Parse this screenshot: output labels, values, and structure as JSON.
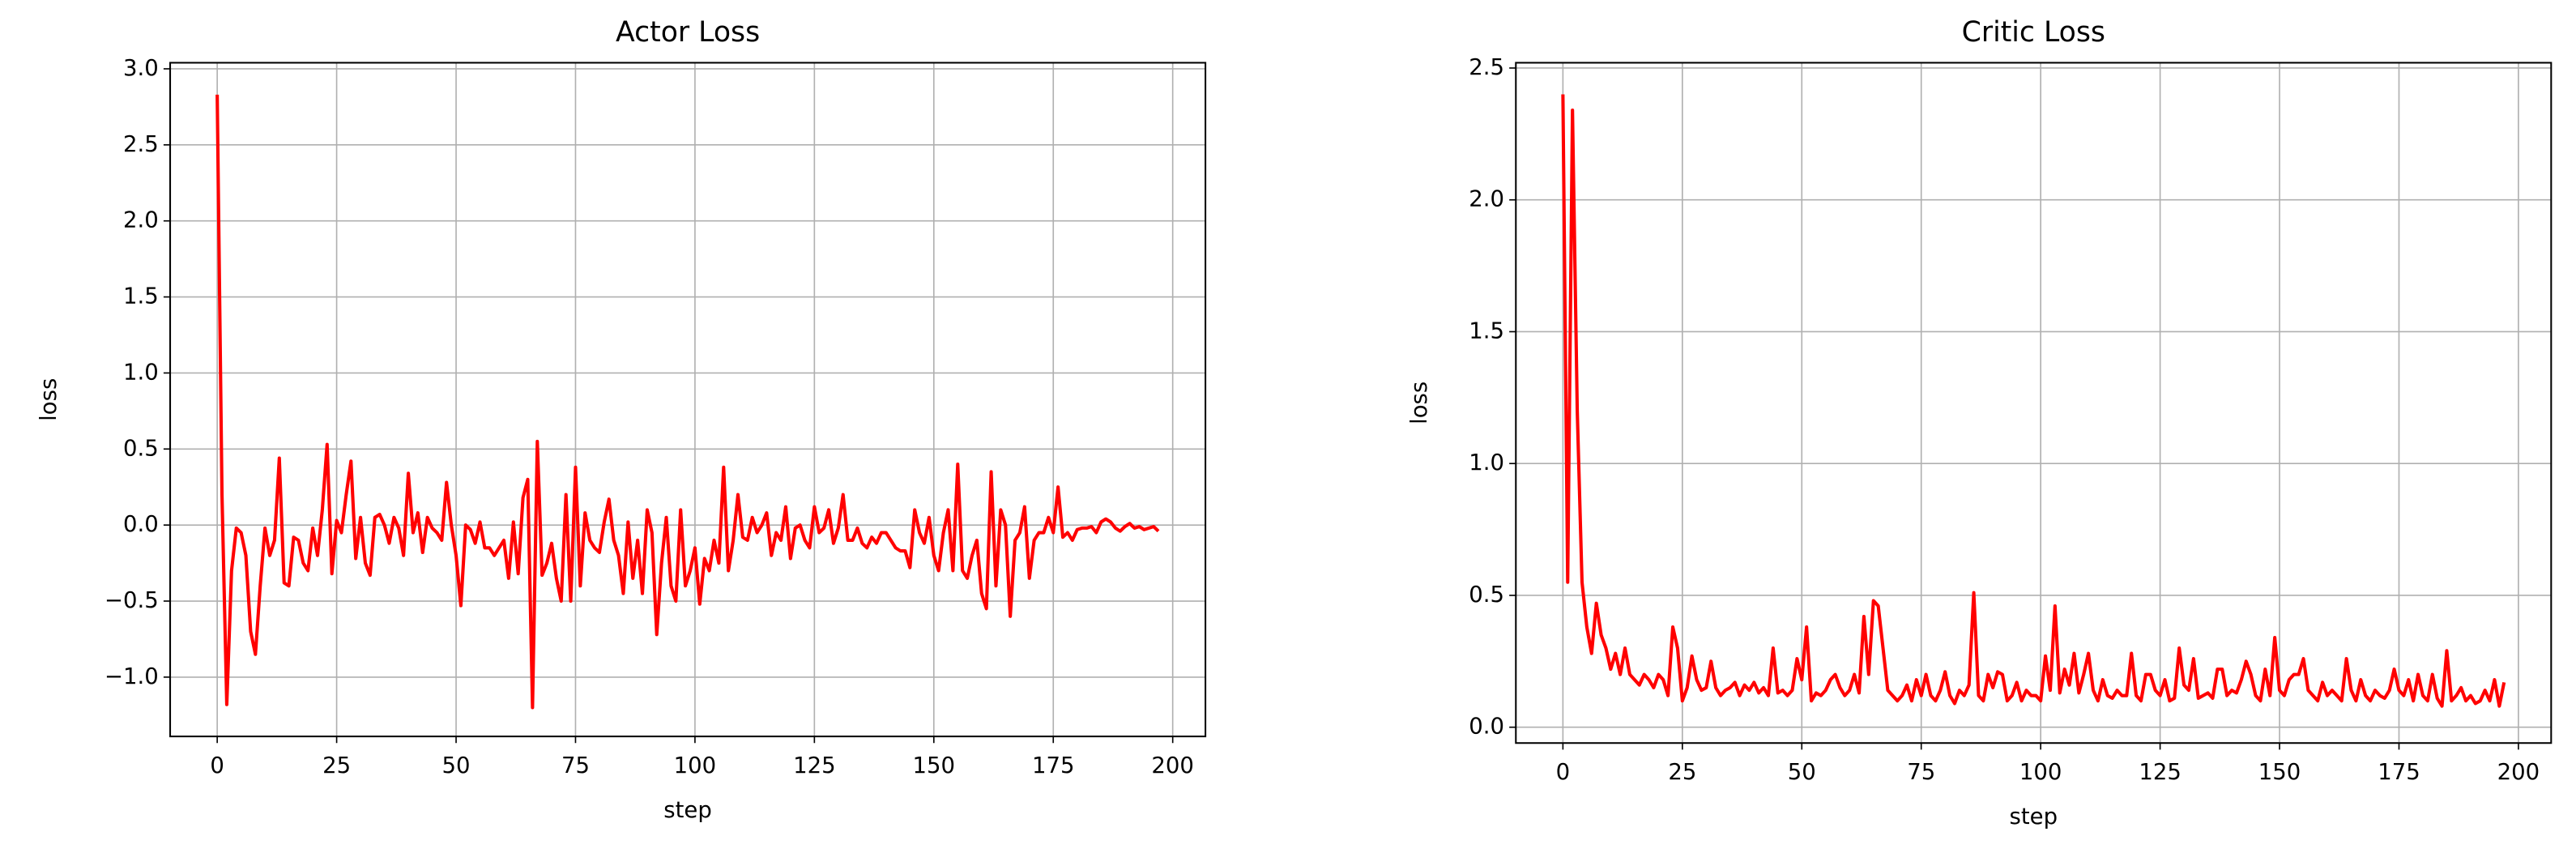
{
  "chart_data": [
    {
      "type": "line",
      "title": "Actor Loss",
      "xlabel": "step",
      "ylabel": "loss",
      "x": [
        0,
        1,
        2,
        3,
        4,
        5,
        6,
        7,
        8,
        9,
        10,
        11,
        12,
        13,
        14,
        15,
        16,
        17,
        18,
        19,
        20,
        21,
        22,
        23,
        24,
        25,
        26,
        27,
        28,
        29,
        30,
        31,
        32,
        33,
        34,
        35,
        36,
        37,
        38,
        39,
        40,
        41,
        42,
        43,
        44,
        45,
        46,
        47,
        48,
        49,
        50,
        51,
        52,
        53,
        54,
        55,
        56,
        57,
        58,
        59,
        60,
        61,
        62,
        63,
        64,
        65,
        66,
        67,
        68,
        69,
        70,
        71,
        72,
        73,
        74,
        75,
        76,
        77,
        78,
        79,
        80,
        81,
        82,
        83,
        84,
        85,
        86,
        87,
        88,
        89,
        90,
        91,
        92,
        93,
        94,
        95,
        96,
        97,
        98,
        99,
        100,
        101,
        102,
        103,
        104,
        105,
        106,
        107,
        108,
        109,
        110,
        111,
        112,
        113,
        114,
        115,
        116,
        117,
        118,
        119,
        120,
        121,
        122,
        123,
        124,
        125,
        126,
        127,
        128,
        129,
        130,
        131,
        132,
        133,
        134,
        135,
        136,
        137,
        138,
        139,
        140,
        141,
        142,
        143,
        144,
        145,
        146,
        147,
        148,
        149,
        150,
        151,
        152,
        153,
        154,
        155,
        156,
        157,
        158,
        159,
        160,
        161,
        162,
        163,
        164,
        165,
        166,
        167,
        168,
        169,
        170,
        171,
        172,
        173,
        174,
        175,
        176,
        177,
        178,
        179,
        180,
        181,
        182,
        183,
        184,
        185,
        186,
        187,
        188,
        189,
        190,
        191,
        192,
        193,
        194,
        195,
        196,
        197
      ],
      "series": [
        {
          "color": "#ff0000",
          "values": [
            2.83,
            0.2,
            -1.18,
            -0.3,
            -0.02,
            -0.05,
            -0.2,
            -0.7,
            -0.85,
            -0.4,
            -0.02,
            -0.2,
            -0.1,
            0.44,
            -0.38,
            -0.4,
            -0.08,
            -0.1,
            -0.25,
            -0.3,
            -0.02,
            -0.2,
            0.1,
            0.53,
            -0.32,
            0.03,
            -0.05,
            0.2,
            0.42,
            -0.22,
            0.05,
            -0.25,
            -0.33,
            0.05,
            0.07,
            0,
            -0.12,
            0.05,
            -0.02,
            -0.2,
            0.34,
            -0.05,
            0.08,
            -0.18,
            0.05,
            -0.02,
            -0.05,
            -0.1,
            0.28,
            0,
            -0.2,
            -0.53,
            0,
            -0.03,
            -0.12,
            0.02,
            -0.15,
            -0.15,
            -0.2,
            -0.15,
            -0.1,
            -0.35,
            0.02,
            -0.32,
            0.18,
            0.3,
            -1.2,
            0.55,
            -0.33,
            -0.25,
            -0.12,
            -0.35,
            -0.5,
            0.2,
            -0.5,
            0.38,
            -0.4,
            0.08,
            -0.1,
            -0.15,
            -0.18,
            0.02,
            0.17,
            -0.1,
            -0.2,
            -0.45,
            0.02,
            -0.35,
            -0.1,
            -0.45,
            0.1,
            -0.05,
            -0.72,
            -0.25,
            0.05,
            -0.4,
            -0.5,
            0.1,
            -0.4,
            -0.3,
            -0.15,
            -0.52,
            -0.22,
            -0.3,
            -0.1,
            -0.25,
            0.38,
            -0.3,
            -0.1,
            0.2,
            -0.08,
            -0.1,
            0.05,
            -0.05,
            0,
            0.08,
            -0.2,
            -0.05,
            -0.1,
            0.12,
            -0.22,
            -0.02,
            0,
            -0.1,
            -0.15,
            0.12,
            -0.05,
            -0.02,
            0.1,
            -0.12,
            -0.02,
            0.2,
            -0.1,
            -0.1,
            -0.02,
            -0.12,
            -0.15,
            -0.08,
            -0.12,
            -0.05,
            -0.05,
            -0.1,
            -0.15,
            -0.17,
            -0.17,
            -0.28,
            0.1,
            -0.05,
            -0.12,
            0.05,
            -0.2,
            -0.3,
            -0.05,
            0.1,
            -0.3,
            0.4,
            -0.3,
            -0.35,
            -0.2,
            -0.1,
            -0.45,
            -0.55,
            0.35,
            -0.4,
            0.1,
            0,
            -0.6,
            -0.1,
            -0.05,
            0.12,
            -0.35,
            -0.1,
            -0.05,
            -0.05,
            0.05,
            -0.05,
            0.25,
            -0.08,
            -0.05,
            -0.1,
            -0.03,
            -0.02,
            -0.02,
            -0.01,
            -0.05,
            0.02,
            0.04,
            0.02,
            -0.02,
            -0.04,
            -0.01,
            0.01,
            -0.02,
            -0.01,
            -0.03,
            -0.02,
            -0.01,
            -0.04
          ]
        }
      ],
      "xlim": [
        -9.85,
        206.85
      ],
      "ylim": [
        -1.39,
        3.04
      ],
      "xticks": [
        0,
        25,
        50,
        75,
        100,
        125,
        150,
        175,
        200
      ],
      "yticks": [
        {
          "value": -1,
          "label": "−1.0"
        },
        {
          "value": -0.5,
          "label": "−0.5"
        },
        {
          "value": 0,
          "label": "0.0"
        },
        {
          "value": 0.5,
          "label": "0.5"
        },
        {
          "value": 1,
          "label": "1.0"
        },
        {
          "value": 1.5,
          "label": "1.5"
        },
        {
          "value": 2,
          "label": "2.0"
        },
        {
          "value": 2.5,
          "label": "2.5"
        },
        {
          "value": 3,
          "label": "3.0"
        }
      ],
      "grid": true
    },
    {
      "type": "line",
      "title": "Critic Loss",
      "xlabel": "step",
      "ylabel": "loss",
      "x": [
        0,
        1,
        2,
        3,
        4,
        5,
        6,
        7,
        8,
        9,
        10,
        11,
        12,
        13,
        14,
        15,
        16,
        17,
        18,
        19,
        20,
        21,
        22,
        23,
        24,
        25,
        26,
        27,
        28,
        29,
        30,
        31,
        32,
        33,
        34,
        35,
        36,
        37,
        38,
        39,
        40,
        41,
        42,
        43,
        44,
        45,
        46,
        47,
        48,
        49,
        50,
        51,
        52,
        53,
        54,
        55,
        56,
        57,
        58,
        59,
        60,
        61,
        62,
        63,
        64,
        65,
        66,
        67,
        68,
        69,
        70,
        71,
        72,
        73,
        74,
        75,
        76,
        77,
        78,
        79,
        80,
        81,
        82,
        83,
        84,
        85,
        86,
        87,
        88,
        89,
        90,
        91,
        92,
        93,
        94,
        95,
        96,
        97,
        98,
        99,
        100,
        101,
        102,
        103,
        104,
        105,
        106,
        107,
        108,
        109,
        110,
        111,
        112,
        113,
        114,
        115,
        116,
        117,
        118,
        119,
        120,
        121,
        122,
        123,
        124,
        125,
        126,
        127,
        128,
        129,
        130,
        131,
        132,
        133,
        134,
        135,
        136,
        137,
        138,
        139,
        140,
        141,
        142,
        143,
        144,
        145,
        146,
        147,
        148,
        149,
        150,
        151,
        152,
        153,
        154,
        155,
        156,
        157,
        158,
        159,
        160,
        161,
        162,
        163,
        164,
        165,
        166,
        167,
        168,
        169,
        170,
        171,
        172,
        173,
        174,
        175,
        176,
        177,
        178,
        179,
        180,
        181,
        182,
        183,
        184,
        185,
        186,
        187,
        188,
        189,
        190,
        191,
        192,
        193,
        194,
        195,
        196,
        197
      ],
      "series": [
        {
          "color": "#ff0000",
          "values": [
            2.4,
            0.55,
            2.34,
            1.2,
            0.55,
            0.38,
            0.28,
            0.47,
            0.35,
            0.3,
            0.22,
            0.28,
            0.2,
            0.3,
            0.2,
            0.18,
            0.16,
            0.2,
            0.18,
            0.15,
            0.2,
            0.18,
            0.12,
            0.38,
            0.3,
            0.1,
            0.15,
            0.27,
            0.18,
            0.14,
            0.15,
            0.25,
            0.15,
            0.12,
            0.14,
            0.15,
            0.17,
            0.12,
            0.16,
            0.14,
            0.17,
            0.13,
            0.15,
            0.12,
            0.3,
            0.13,
            0.14,
            0.12,
            0.14,
            0.26,
            0.18,
            0.38,
            0.1,
            0.13,
            0.12,
            0.14,
            0.18,
            0.2,
            0.15,
            0.12,
            0.14,
            0.2,
            0.13,
            0.42,
            0.2,
            0.48,
            0.46,
            0.3,
            0.14,
            0.12,
            0.1,
            0.12,
            0.16,
            0.1,
            0.18,
            0.12,
            0.2,
            0.12,
            0.1,
            0.14,
            0.21,
            0.12,
            0.09,
            0.14,
            0.12,
            0.16,
            0.51,
            0.12,
            0.1,
            0.2,
            0.15,
            0.21,
            0.2,
            0.1,
            0.12,
            0.17,
            0.1,
            0.14,
            0.12,
            0.12,
            0.1,
            0.27,
            0.14,
            0.46,
            0.13,
            0.22,
            0.16,
            0.28,
            0.13,
            0.2,
            0.28,
            0.14,
            0.1,
            0.18,
            0.12,
            0.11,
            0.14,
            0.12,
            0.12,
            0.28,
            0.12,
            0.1,
            0.2,
            0.2,
            0.14,
            0.12,
            0.18,
            0.1,
            0.11,
            0.3,
            0.16,
            0.14,
            0.26,
            0.11,
            0.12,
            0.13,
            0.11,
            0.22,
            0.22,
            0.12,
            0.14,
            0.13,
            0.18,
            0.25,
            0.2,
            0.12,
            0.1,
            0.22,
            0.12,
            0.34,
            0.14,
            0.12,
            0.18,
            0.2,
            0.2,
            0.26,
            0.14,
            0.12,
            0.1,
            0.17,
            0.12,
            0.14,
            0.12,
            0.1,
            0.26,
            0.14,
            0.1,
            0.18,
            0.12,
            0.1,
            0.14,
            0.12,
            0.11,
            0.14,
            0.22,
            0.14,
            0.12,
            0.18,
            0.1,
            0.2,
            0.12,
            0.1,
            0.2,
            0.11,
            0.08,
            0.29,
            0.1,
            0.12,
            0.15,
            0.1,
            0.12,
            0.09,
            0.1,
            0.14,
            0.1,
            0.18,
            0.08,
            0.17
          ]
        }
      ],
      "xlim": [
        -9.85,
        206.85
      ],
      "ylim": [
        -0.06,
        2.52
      ],
      "xticks": [
        0,
        25,
        50,
        75,
        100,
        125,
        150,
        175,
        200
      ],
      "yticks": [
        {
          "value": 0,
          "label": "0.0"
        },
        {
          "value": 0.5,
          "label": "0.5"
        },
        {
          "value": 1,
          "label": "1.0"
        },
        {
          "value": 1.5,
          "label": "1.5"
        },
        {
          "value": 2,
          "label": "2.0"
        },
        {
          "value": 2.5,
          "label": "2.5"
        }
      ],
      "grid": true
    }
  ]
}
